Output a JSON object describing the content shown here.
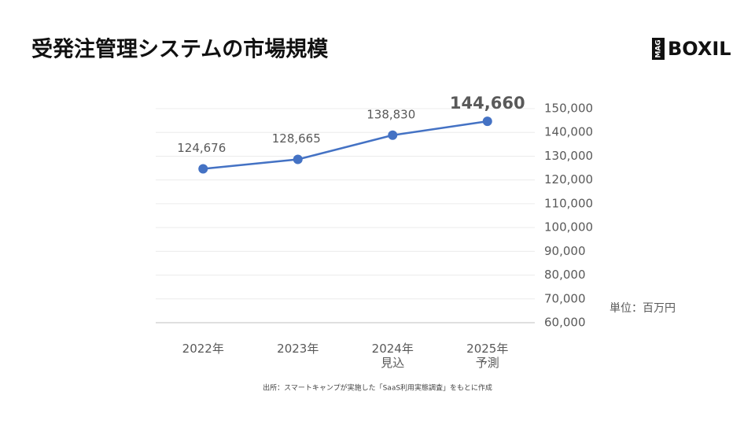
{
  "chart_data": {
    "type": "line",
    "title": "受発注管理システムの市場規模",
    "categories": [
      "2022年",
      "2023年",
      "2024年\n見込",
      "2025年\n予測"
    ],
    "series": [
      {
        "name": "市場規模",
        "color": "#4472c4",
        "values": [
          124676,
          128665,
          138830,
          144660
        ],
        "value_labels": [
          "124,676",
          "128,665",
          "138,830",
          "144,660"
        ]
      }
    ],
    "ylim": [
      60000,
      150000
    ],
    "yticks": [
      {
        "value": 60000,
        "label": "60,000"
      },
      {
        "value": 70000,
        "label": "70,000"
      },
      {
        "value": 80000,
        "label": "80,000"
      },
      {
        "value": 90000,
        "label": "90,000"
      },
      {
        "value": 100000,
        "label": "100,000"
      },
      {
        "value": 110000,
        "label": "110,000"
      },
      {
        "value": 120000,
        "label": "120,000"
      },
      {
        "value": 130000,
        "label": "130,000"
      },
      {
        "value": 140000,
        "label": "140,000"
      },
      {
        "value": 150000,
        "label": "150,000"
      }
    ],
    "grid": true,
    "unit": "単位：百万円",
    "source": "出所：スマートキャンプが実施した「SaaS利用実態調査」をもとに作成"
  },
  "logo": {
    "mag": "MAG",
    "name": "BOXIL"
  }
}
